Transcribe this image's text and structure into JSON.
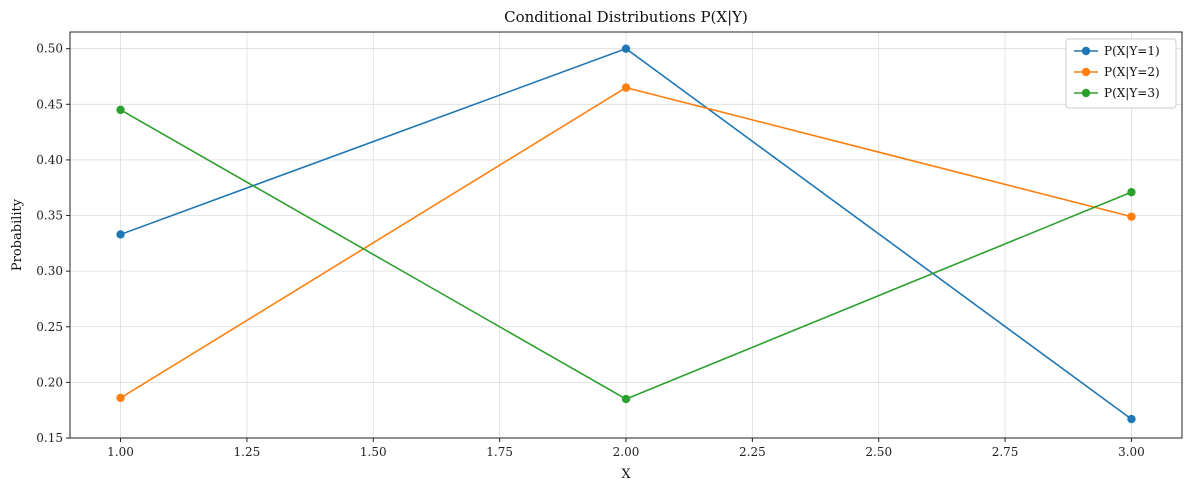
{
  "chart_data": {
    "type": "line",
    "title": "Conditional Distributions P(X|Y)",
    "xlabel": "X",
    "ylabel": "Probability",
    "xlim": [
      0.9,
      3.1
    ],
    "ylim": [
      0.15,
      0.515
    ],
    "xticks": [
      1.0,
      1.25,
      1.5,
      1.75,
      2.0,
      2.25,
      2.5,
      2.75,
      3.0
    ],
    "xtick_labels": [
      "1.00",
      "1.25",
      "1.50",
      "1.75",
      "2.00",
      "2.25",
      "2.50",
      "2.75",
      "3.00"
    ],
    "yticks": [
      0.15,
      0.2,
      0.25,
      0.3,
      0.35,
      0.4,
      0.45,
      0.5
    ],
    "ytick_labels": [
      "0.15",
      "0.20",
      "0.25",
      "0.30",
      "0.35",
      "0.40",
      "0.45",
      "0.50"
    ],
    "grid": true,
    "legend_position": "top-right",
    "x": [
      1,
      2,
      3
    ],
    "series": [
      {
        "name": "P(X|Y=1)",
        "color": "#1f77b4",
        "values": [
          0.333,
          0.5,
          0.167
        ]
      },
      {
        "name": "P(X|Y=2)",
        "color": "#ff7f0e",
        "values": [
          0.186,
          0.465,
          0.349
        ]
      },
      {
        "name": "P(X|Y=3)",
        "color": "#2ca02c",
        "values": [
          0.445,
          0.185,
          0.371
        ]
      }
    ]
  }
}
